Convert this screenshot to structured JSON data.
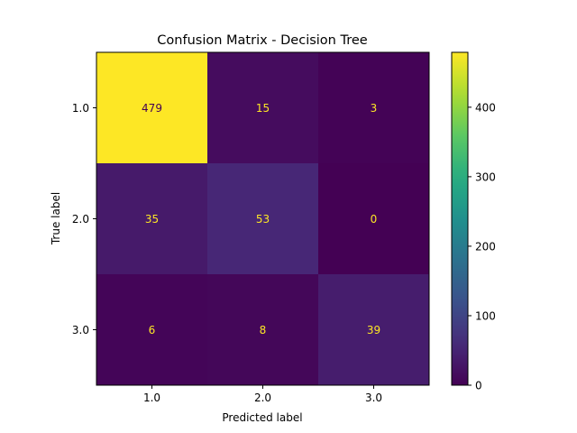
{
  "chart_data": {
    "type": "heatmap",
    "title": "Confusion Matrix - Decision Tree",
    "xlabel": "Predicted label",
    "ylabel": "True label",
    "x_categories": [
      "1.0",
      "2.0",
      "3.0"
    ],
    "y_categories": [
      "1.0",
      "2.0",
      "3.0"
    ],
    "matrix": [
      [
        479,
        15,
        3
      ],
      [
        35,
        53,
        0
      ],
      [
        6,
        8,
        39
      ]
    ],
    "colormap": "viridis",
    "colorbar": {
      "range": [
        0,
        479
      ],
      "ticks": [
        0,
        100,
        200,
        300,
        400
      ],
      "tick_labels": [
        "0",
        "100",
        "200",
        "300",
        "400"
      ]
    },
    "grid": false,
    "colors": {
      "text_on_dark": "#fde725",
      "text_on_light": "#440154",
      "axis": "#000000"
    }
  }
}
